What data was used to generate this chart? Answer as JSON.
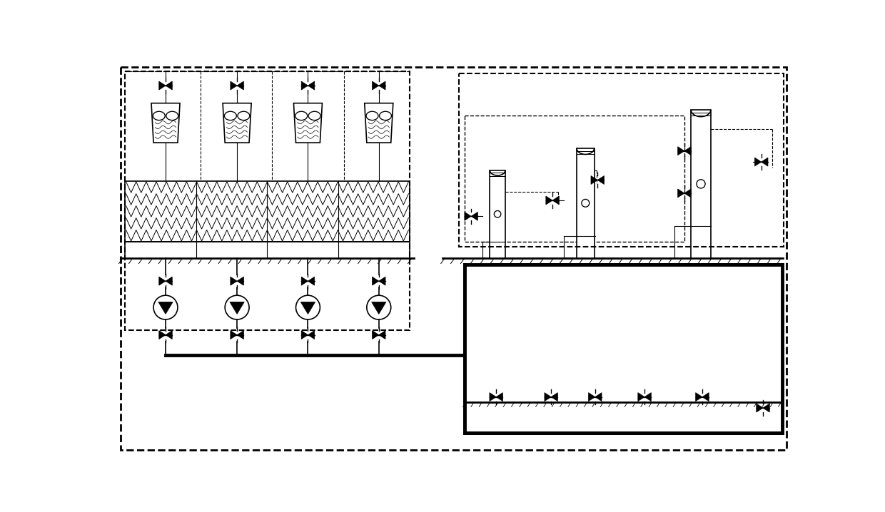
{
  "bg_color": "#ffffff",
  "line_color": "#000000",
  "fig_width": 12.4,
  "fig_height": 7.18,
  "dpi": 100
}
